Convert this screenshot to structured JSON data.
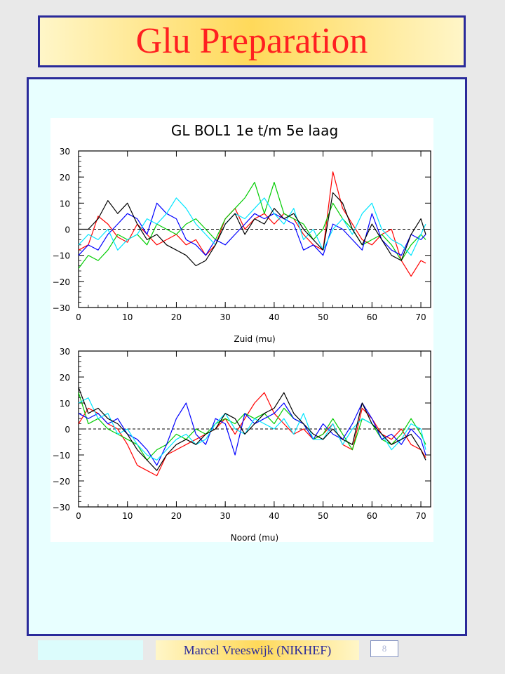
{
  "slide": {
    "title": "Glu Preparation",
    "author": "Marcel Vreeswijk (NIKHEF)",
    "slide_number": "8"
  },
  "colors": {
    "title_text": "#ff2020",
    "frame_border": "#2a2a9a",
    "panel_bg": "#e8ffff"
  },
  "chart_data": [
    {
      "type": "line",
      "title": "GL BOL1 1e t/m 5e laag",
      "xlabel": "Zuid (mu)",
      "ylabel": "",
      "xlim": [
        0,
        72
      ],
      "ylim": [
        -30,
        30
      ],
      "xticks": [
        0,
        10,
        20,
        30,
        40,
        50,
        60,
        70
      ],
      "yticks": [
        -30,
        -20,
        -10,
        0,
        10,
        20,
        30
      ],
      "reference_line": 0,
      "x": [
        0,
        2,
        4,
        6,
        8,
        10,
        12,
        14,
        16,
        18,
        20,
        22,
        24,
        26,
        28,
        30,
        32,
        34,
        36,
        38,
        40,
        42,
        44,
        46,
        48,
        50,
        52,
        54,
        56,
        58,
        60,
        62,
        64,
        66,
        68,
        70,
        71
      ],
      "series": [
        {
          "color": "#ff0000",
          "values": [
            -8,
            -6,
            5,
            2,
            -3,
            -5,
            2,
            -2,
            -6,
            -4,
            -2,
            -6,
            -4,
            -10,
            -6,
            4,
            8,
            0,
            4,
            6,
            2,
            6,
            4,
            -2,
            -6,
            -8,
            22,
            8,
            2,
            -4,
            -6,
            -2,
            0,
            -12,
            -18,
            -12,
            -13
          ]
        },
        {
          "color": "#00cc00",
          "values": [
            -15,
            -10,
            -12,
            -8,
            -2,
            -4,
            -2,
            -6,
            2,
            0,
            -2,
            2,
            4,
            0,
            -4,
            4,
            8,
            12,
            18,
            6,
            18,
            6,
            4,
            2,
            -4,
            0,
            10,
            4,
            0,
            -6,
            -4,
            -2,
            -6,
            -12,
            -6,
            -2,
            -4
          ]
        },
        {
          "color": "#0000ff",
          "values": [
            -10,
            -6,
            -8,
            -2,
            2,
            6,
            4,
            -2,
            10,
            6,
            4,
            -4,
            -6,
            -10,
            -4,
            -6,
            -2,
            2,
            6,
            4,
            6,
            4,
            2,
            -8,
            -6,
            -10,
            2,
            0,
            -4,
            -8,
            6,
            -4,
            -8,
            -10,
            -2,
            -4,
            -2
          ]
        },
        {
          "color": "#00e5ff",
          "values": [
            -6,
            -2,
            -4,
            0,
            -8,
            -4,
            -2,
            4,
            2,
            6,
            12,
            8,
            2,
            -2,
            -6,
            2,
            6,
            4,
            8,
            12,
            6,
            2,
            8,
            -4,
            0,
            -8,
            0,
            4,
            -2,
            6,
            10,
            0,
            -4,
            -6,
            -10,
            -2,
            2
          ]
        },
        {
          "color": "#000000",
          "values": [
            0,
            0,
            4,
            11,
            6,
            10,
            2,
            -4,
            -2,
            -6,
            -8,
            -10,
            -14,
            -12,
            -6,
            2,
            6,
            -2,
            4,
            2,
            8,
            4,
            6,
            0,
            -4,
            -8,
            14,
            10,
            0,
            -6,
            2,
            -4,
            -10,
            -12,
            -2,
            4,
            -2
          ]
        }
      ]
    },
    {
      "type": "line",
      "title": "",
      "xlabel": "Noord (mu)",
      "ylabel": "",
      "xlim": [
        0,
        72
      ],
      "ylim": [
        -30,
        30
      ],
      "xticks": [
        0,
        10,
        20,
        30,
        40,
        50,
        60,
        70
      ],
      "yticks": [
        -30,
        -20,
        -10,
        0,
        10,
        20,
        30
      ],
      "reference_line": 0,
      "x": [
        0,
        2,
        4,
        6,
        8,
        10,
        12,
        14,
        16,
        18,
        20,
        22,
        24,
        26,
        28,
        30,
        32,
        34,
        36,
        38,
        40,
        42,
        44,
        46,
        48,
        50,
        52,
        54,
        56,
        58,
        60,
        62,
        64,
        66,
        68,
        70,
        71
      ],
      "series": [
        {
          "color": "#ff0000",
          "values": [
            2,
            8,
            6,
            2,
            0,
            -6,
            -14,
            -16,
            -18,
            -10,
            -8,
            -6,
            -4,
            -2,
            0,
            4,
            -2,
            4,
            10,
            14,
            6,
            2,
            -2,
            0,
            -4,
            -2,
            2,
            -6,
            -8,
            8,
            4,
            -2,
            -4,
            0,
            -6,
            -8,
            -11
          ]
        },
        {
          "color": "#00cc00",
          "values": [
            14,
            2,
            4,
            0,
            -2,
            -4,
            -6,
            -12,
            -8,
            -6,
            -2,
            -4,
            0,
            -2,
            2,
            4,
            2,
            6,
            4,
            6,
            2,
            8,
            4,
            2,
            -4,
            -2,
            4,
            -2,
            -8,
            4,
            2,
            -4,
            -6,
            -2,
            4,
            -2,
            -6
          ]
        },
        {
          "color": "#0000ff",
          "values": [
            6,
            4,
            6,
            2,
            4,
            -2,
            -4,
            -8,
            -14,
            -6,
            4,
            10,
            -2,
            -6,
            4,
            2,
            -10,
            6,
            2,
            4,
            6,
            10,
            4,
            2,
            -4,
            2,
            -2,
            -4,
            2,
            10,
            4,
            -4,
            -2,
            -6,
            0,
            -4,
            -10
          ]
        },
        {
          "color": "#00e5ff",
          "values": [
            10,
            12,
            4,
            6,
            -2,
            0,
            -6,
            -10,
            -12,
            -8,
            -4,
            -2,
            -6,
            -4,
            2,
            6,
            0,
            -2,
            4,
            2,
            0,
            4,
            -2,
            6,
            -4,
            -4,
            2,
            -6,
            0,
            4,
            2,
            -2,
            -8,
            -4,
            2,
            0,
            -8
          ]
        },
        {
          "color": "#000000",
          "values": [
            16,
            6,
            8,
            4,
            2,
            -2,
            -8,
            -12,
            -16,
            -10,
            -6,
            -4,
            -6,
            -2,
            0,
            6,
            4,
            -2,
            2,
            6,
            8,
            14,
            6,
            2,
            -2,
            -4,
            0,
            -4,
            -6,
            10,
            2,
            -2,
            -6,
            -4,
            -2,
            -8,
            -12
          ]
        }
      ]
    }
  ]
}
